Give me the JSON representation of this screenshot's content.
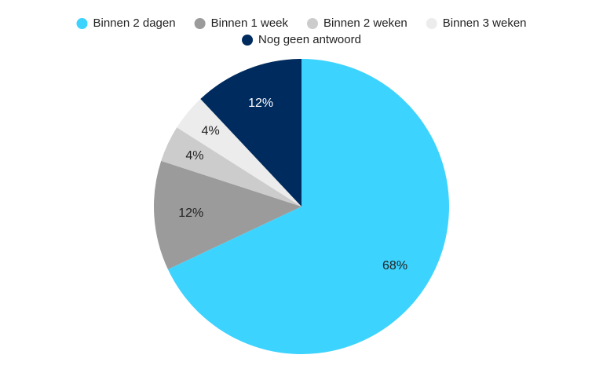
{
  "chart_data": {
    "type": "pie",
    "categories": [
      "Binnen 2 dagen",
      "Binnen 1 week",
      "Binnen 2 weken",
      "Binnen 3 weken",
      "Nog geen antwoord"
    ],
    "values": [
      68,
      12,
      4,
      4,
      12
    ],
    "value_labels": [
      "68%",
      "12%",
      "4%",
      "4%",
      "12%"
    ],
    "colors": [
      "#3dd3ff",
      "#9b9b9b",
      "#cccccc",
      "#ececec",
      "#002b5e"
    ],
    "legend": "top"
  }
}
